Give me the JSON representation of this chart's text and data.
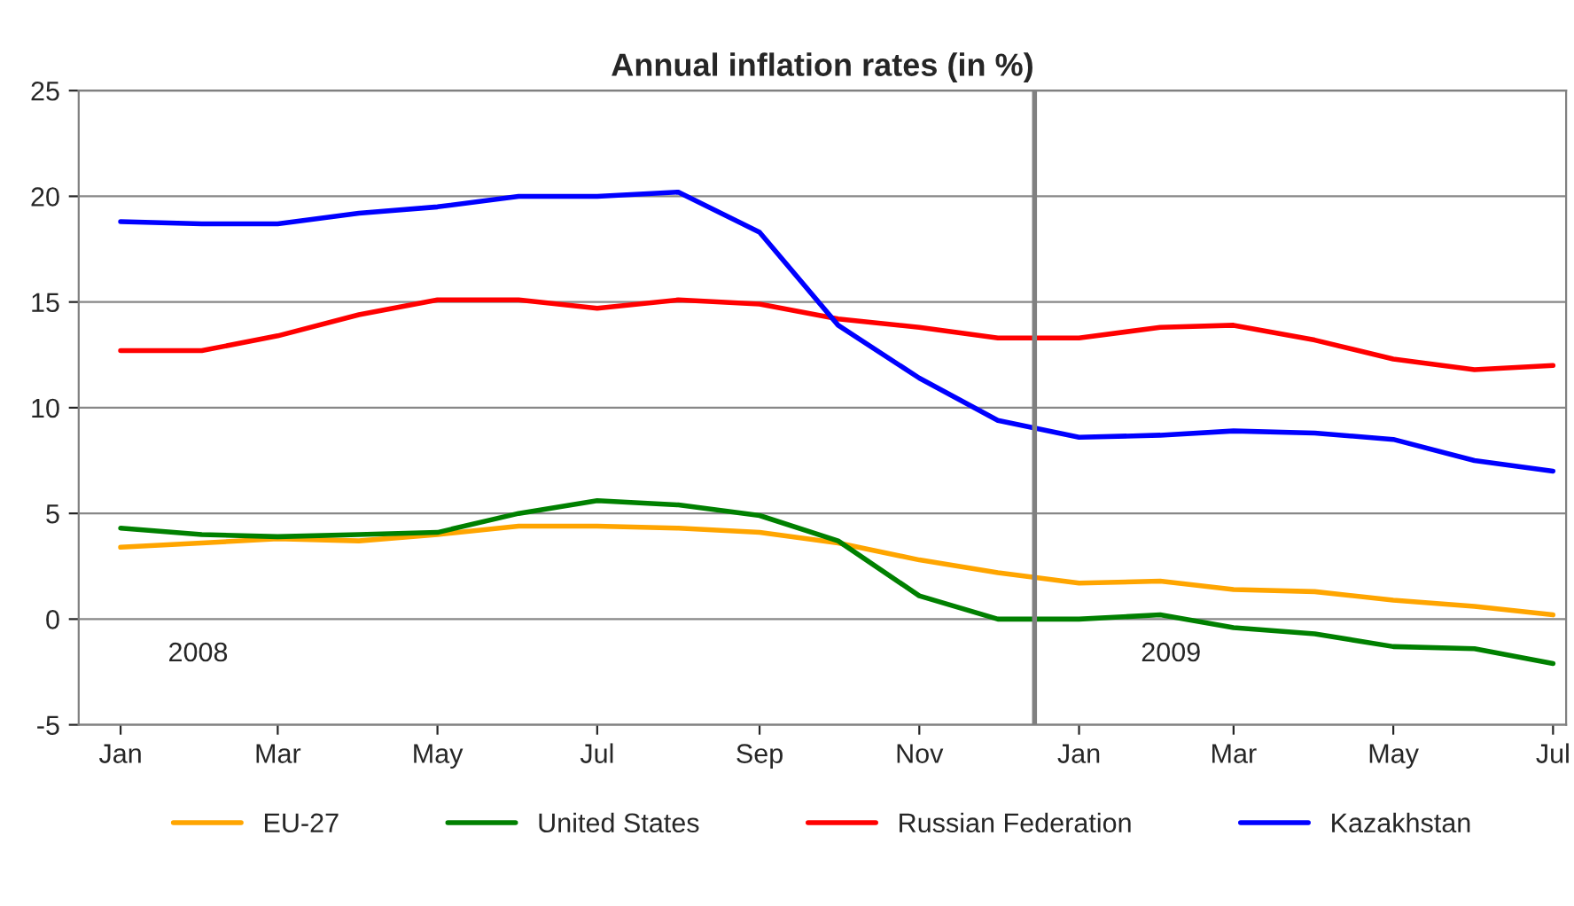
{
  "chart_data": {
    "type": "line",
    "title": "Annual inflation rates (in %)",
    "x": [
      "2008-01",
      "2008-02",
      "2008-03",
      "2008-04",
      "2008-05",
      "2008-06",
      "2008-07",
      "2008-08",
      "2008-09",
      "2008-10",
      "2008-11",
      "2008-12",
      "2009-01",
      "2009-02",
      "2009-03",
      "2009-04",
      "2009-05",
      "2009-06",
      "2009-07"
    ],
    "series": [
      {
        "name": "EU-27",
        "color": "#ffa500",
        "values": [
          3.4,
          3.6,
          3.8,
          3.7,
          4.0,
          4.4,
          4.4,
          4.3,
          4.1,
          3.6,
          2.8,
          2.2,
          1.7,
          1.8,
          1.4,
          1.3,
          0.9,
          0.6,
          0.2
        ]
      },
      {
        "name": "United States",
        "color": "#008000",
        "values": [
          4.3,
          4.0,
          3.9,
          4.0,
          4.1,
          5.0,
          5.6,
          5.4,
          4.9,
          3.7,
          1.1,
          0.0,
          0.0,
          0.2,
          -0.4,
          -0.7,
          -1.3,
          -1.4,
          -2.1
        ]
      },
      {
        "name": "Russian Federation",
        "color": "#ff0000",
        "values": [
          12.7,
          12.7,
          13.4,
          14.4,
          15.1,
          15.1,
          14.7,
          15.1,
          14.9,
          14.2,
          13.8,
          13.3,
          13.3,
          13.8,
          13.9,
          13.2,
          12.3,
          11.8,
          12.0
        ]
      },
      {
        "name": "Kazakhstan",
        "color": "#0000ff",
        "values": [
          18.8,
          18.7,
          18.7,
          19.2,
          19.5,
          20.0,
          20.0,
          20.2,
          18.3,
          13.9,
          11.4,
          9.4,
          8.6,
          8.7,
          8.9,
          8.8,
          8.5,
          7.5,
          7.0
        ]
      }
    ],
    "xlim": [
      "2007-12-16",
      "2009-07-06"
    ],
    "xticks": [
      {
        "value": "2008-01",
        "label": "Jan"
      },
      {
        "value": "2008-03",
        "label": "Mar"
      },
      {
        "value": "2008-05",
        "label": "May"
      },
      {
        "value": "2008-07",
        "label": "Jul"
      },
      {
        "value": "2008-09",
        "label": "Sep"
      },
      {
        "value": "2008-11",
        "label": "Nov"
      },
      {
        "value": "2009-01",
        "label": "Jan"
      },
      {
        "value": "2009-03",
        "label": "Mar"
      },
      {
        "value": "2009-05",
        "label": "May"
      },
      {
        "value": "2009-07",
        "label": "Jul"
      }
    ],
    "ylim": [
      -5,
      25
    ],
    "yticks": [
      -5,
      0,
      5,
      10,
      15,
      20,
      25
    ],
    "ref_lines": [
      {
        "axis": "x",
        "value": "2008-12-15",
        "color": "#808080"
      }
    ],
    "annotations": [
      "2008",
      "2009"
    ],
    "grid": "y",
    "legend": "bottom",
    "marker": "none",
    "line_style": "solid"
  }
}
